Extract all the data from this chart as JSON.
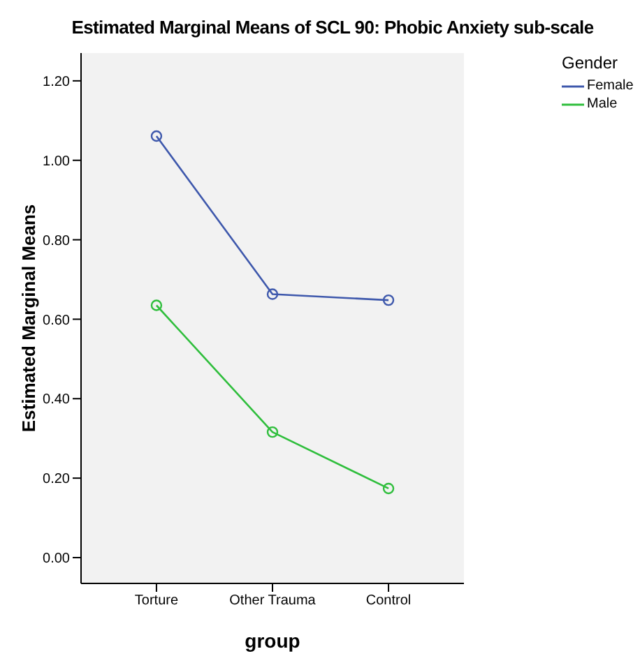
{
  "chart_data": {
    "type": "line",
    "title": "Estimated Marginal Means of SCL 90: Phobic Anxiety sub-scale",
    "xlabel": "group",
    "ylabel": "Estimated Marginal Means",
    "legend_title": "Gender",
    "categories": [
      "Torture",
      "Other Trauma",
      "Control"
    ],
    "series": [
      {
        "name": "Female",
        "color": "#3e58ac",
        "values": [
          1.061,
          0.663,
          0.648
        ]
      },
      {
        "name": "Male",
        "color": "#2fbe3c",
        "values": [
          0.635,
          0.316,
          0.174
        ]
      }
    ],
    "ylim": [
      -0.065,
      1.27
    ],
    "yticks": [
      {
        "value": 0,
        "label": "0.00"
      },
      {
        "value": 0.2,
        "label": "0.20"
      },
      {
        "value": 0.4,
        "label": "0.40"
      },
      {
        "value": 0.6,
        "label": "0.60"
      },
      {
        "value": 0.8,
        "label": "0.80"
      },
      {
        "value": 1,
        "label": "1.00"
      },
      {
        "value": 1.2,
        "label": "1.20"
      }
    ],
    "grid": false,
    "legend": "top right",
    "marker": "circle",
    "line_style": "solid"
  }
}
